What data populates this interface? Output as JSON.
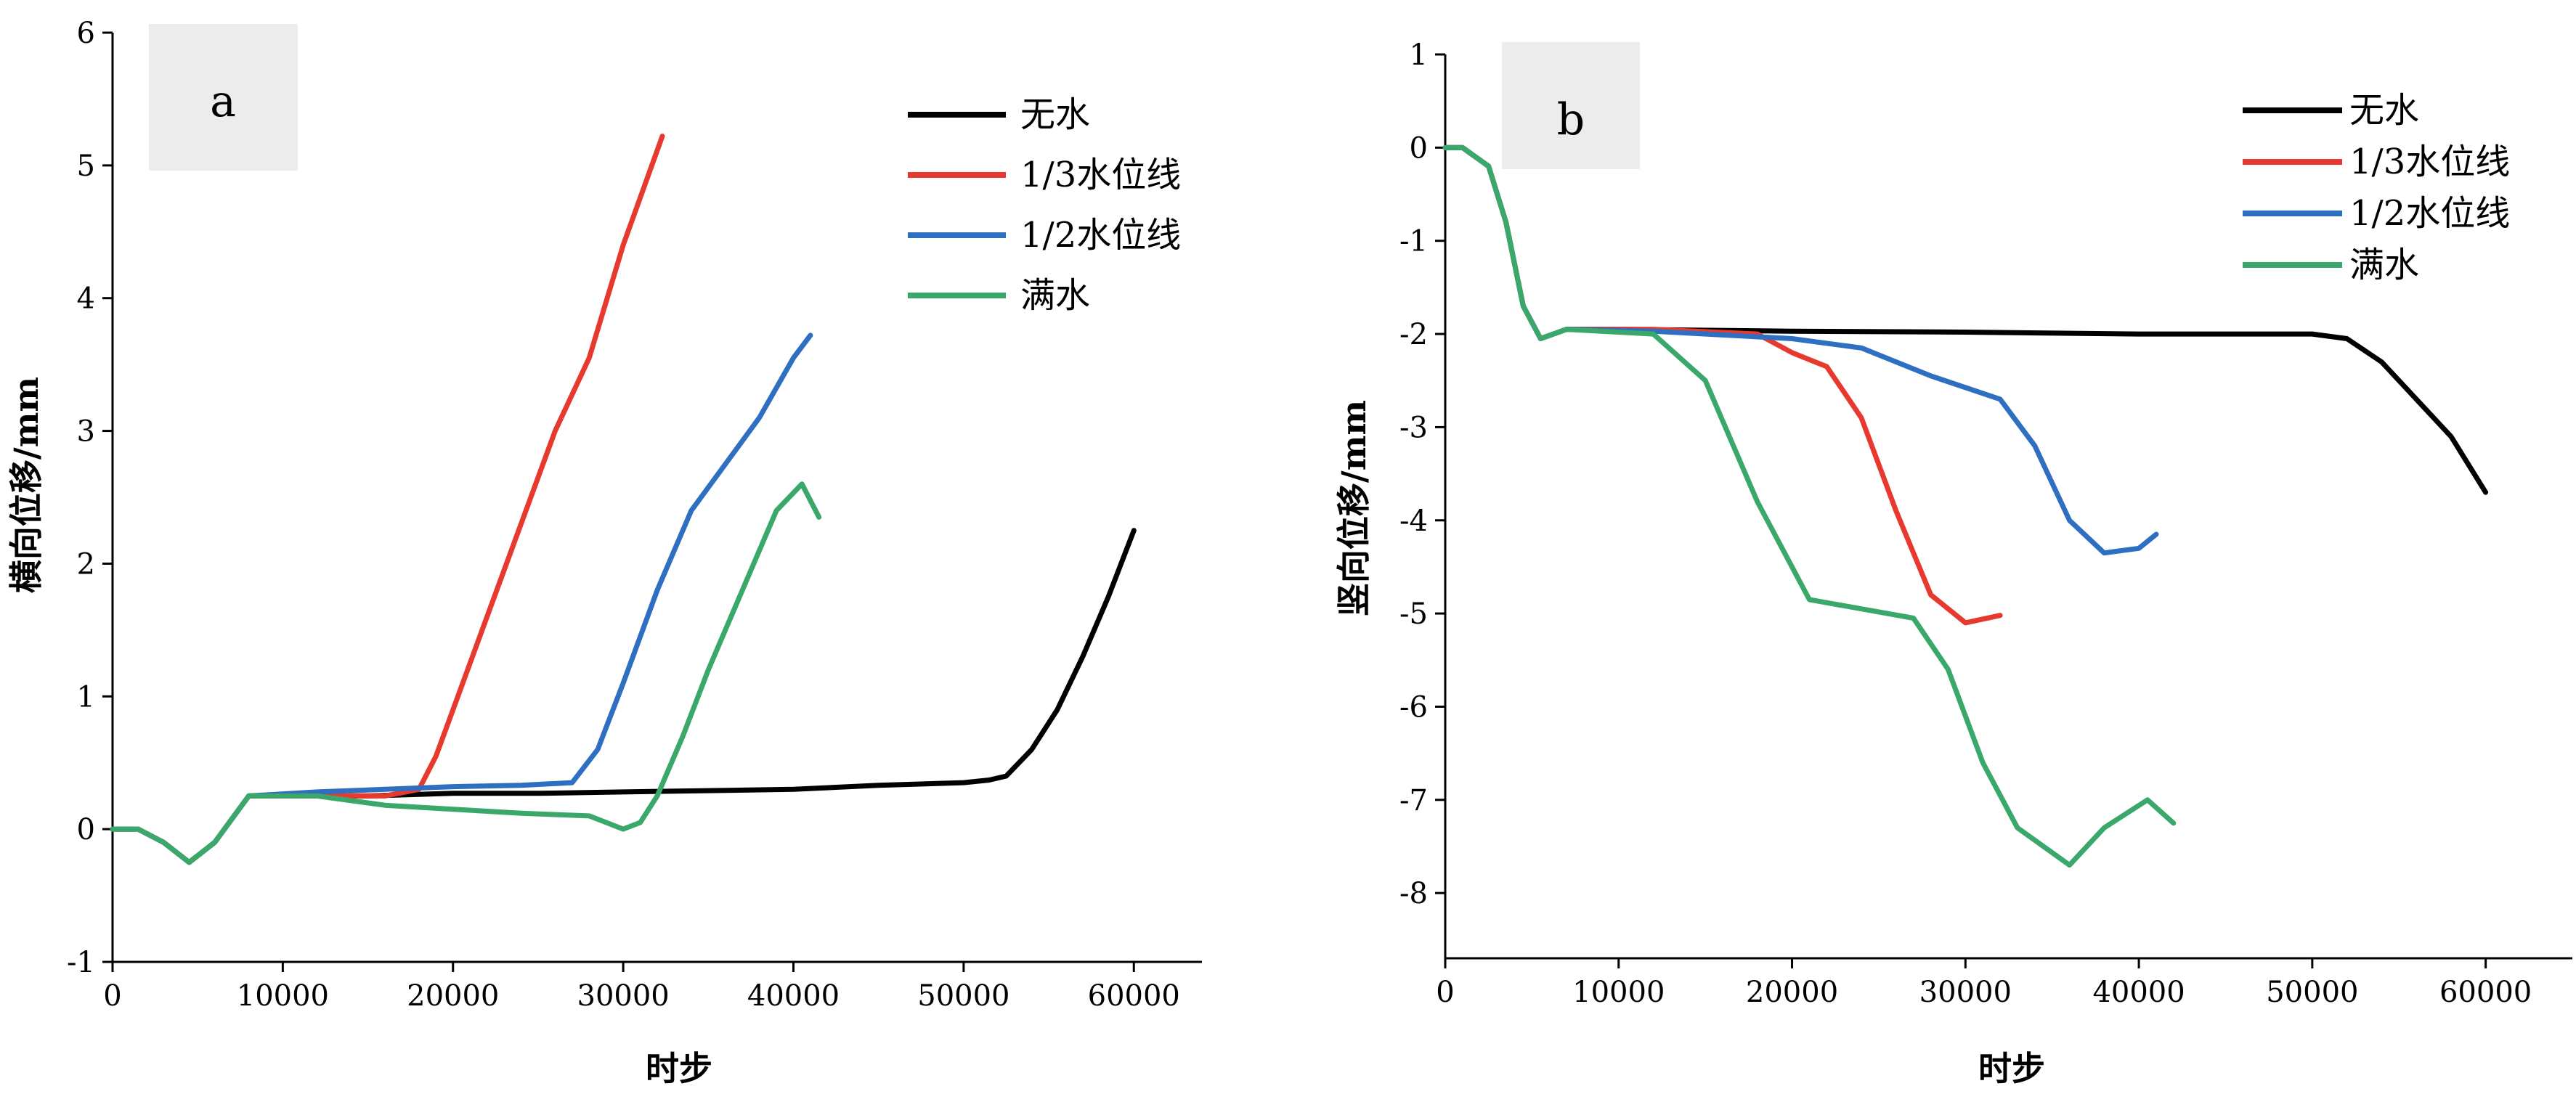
{
  "colors": {
    "series": [
      "#000000",
      "#e8392f",
      "#2e6fc2",
      "#3aa86a"
    ],
    "label_box": "#ececec"
  },
  "chart_data": [
    {
      "type": "line",
      "panel_label": "a",
      "xlabel": "时步",
      "ylabel": "横向位移/mm",
      "xlim": [
        0,
        64000
      ],
      "ylim": [
        -1,
        6
      ],
      "xticks": [
        0,
        10000,
        20000,
        30000,
        40000,
        50000,
        60000
      ],
      "yticks": [
        -1,
        0,
        1,
        2,
        3,
        4,
        5,
        6
      ],
      "legend_position": "top-right",
      "series": [
        {
          "name": "无水",
          "x": [
            0,
            1500,
            3000,
            4500,
            6000,
            8000,
            10000,
            15000,
            20000,
            25000,
            30000,
            35000,
            40000,
            45000,
            50000,
            51500,
            52500,
            54000,
            55500,
            57000,
            58500,
            60000
          ],
          "y": [
            0,
            0,
            -0.1,
            -0.25,
            -0.1,
            0.25,
            0.25,
            0.25,
            0.27,
            0.27,
            0.28,
            0.29,
            0.3,
            0.33,
            0.35,
            0.37,
            0.4,
            0.6,
            0.9,
            1.3,
            1.75,
            2.25
          ]
        },
        {
          "name": "1/3水位线",
          "x": [
            0,
            1500,
            3000,
            4500,
            6000,
            8000,
            12000,
            16000,
            18000,
            19000,
            20000,
            22000,
            24000,
            26000,
            28000,
            30000,
            32300
          ],
          "y": [
            0,
            0,
            -0.1,
            -0.25,
            -0.1,
            0.25,
            0.25,
            0.25,
            0.3,
            0.55,
            0.9,
            1.6,
            2.3,
            3.0,
            3.55,
            4.4,
            5.22
          ]
        },
        {
          "name": "1/2水位线",
          "x": [
            0,
            1500,
            3000,
            4500,
            6000,
            8000,
            12000,
            16000,
            20000,
            24000,
            27000,
            28500,
            30000,
            32000,
            34000,
            36000,
            38000,
            40000,
            41000
          ],
          "y": [
            0,
            0,
            -0.1,
            -0.25,
            -0.1,
            0.25,
            0.28,
            0.3,
            0.32,
            0.33,
            0.35,
            0.6,
            1.1,
            1.8,
            2.4,
            2.75,
            3.1,
            3.55,
            3.72
          ]
        },
        {
          "name": "满水",
          "x": [
            0,
            1500,
            3000,
            4500,
            6000,
            8000,
            12000,
            16000,
            20000,
            24000,
            28000,
            30000,
            31000,
            32000,
            33500,
            35000,
            37000,
            39000,
            40500,
            41500
          ],
          "y": [
            0,
            0,
            -0.1,
            -0.25,
            -0.1,
            0.25,
            0.25,
            0.18,
            0.15,
            0.12,
            0.1,
            0.0,
            0.05,
            0.25,
            0.7,
            1.2,
            1.8,
            2.4,
            2.6,
            2.35
          ]
        }
      ]
    },
    {
      "type": "line",
      "panel_label": "b",
      "xlabel": "时步",
      "ylabel": "竖向位移/mm",
      "xlim": [
        0,
        65000
      ],
      "ylim": [
        -8.7,
        1
      ],
      "xticks": [
        0,
        10000,
        20000,
        30000,
        40000,
        50000,
        60000
      ],
      "yticks": [
        1,
        0,
        -1,
        -2,
        -3,
        -4,
        -5,
        -6,
        -7,
        -8
      ],
      "legend_position": "top-right",
      "series": [
        {
          "name": "无水",
          "x": [
            0,
            1000,
            2500,
            3500,
            4500,
            5500,
            7000,
            10000,
            20000,
            30000,
            40000,
            45000,
            50000,
            52000,
            54000,
            56000,
            58000,
            60000
          ],
          "y": [
            0,
            0,
            -0.2,
            -0.8,
            -1.7,
            -2.05,
            -1.95,
            -1.95,
            -1.97,
            -1.98,
            -2.0,
            -2.0,
            -2.0,
            -2.05,
            -2.3,
            -2.7,
            -3.1,
            -3.7
          ]
        },
        {
          "name": "1/3水位线",
          "x": [
            0,
            1000,
            2500,
            3500,
            4500,
            5500,
            7000,
            12000,
            18000,
            20000,
            22000,
            24000,
            26000,
            28000,
            30000,
            32000
          ],
          "y": [
            0,
            0,
            -0.2,
            -0.8,
            -1.7,
            -2.05,
            -1.95,
            -1.95,
            -2.0,
            -2.2,
            -2.35,
            -2.9,
            -3.9,
            -4.8,
            -5.1,
            -5.02
          ]
        },
        {
          "name": "1/2水位线",
          "x": [
            0,
            1000,
            2500,
            3500,
            4500,
            5500,
            7000,
            12000,
            20000,
            24000,
            28000,
            32000,
            34000,
            36000,
            38000,
            40000,
            41000
          ],
          "y": [
            0,
            0,
            -0.2,
            -0.8,
            -1.7,
            -2.05,
            -1.95,
            -1.97,
            -2.05,
            -2.15,
            -2.45,
            -2.7,
            -3.2,
            -4.0,
            -4.35,
            -4.3,
            -4.15
          ]
        },
        {
          "name": "满水",
          "x": [
            0,
            1000,
            2500,
            3500,
            4500,
            5500,
            7000,
            12000,
            15000,
            18000,
            21000,
            24000,
            27000,
            29000,
            31000,
            33000,
            36000,
            38000,
            40500,
            42000
          ],
          "y": [
            0,
            0,
            -0.2,
            -0.8,
            -1.7,
            -2.05,
            -1.95,
            -2.0,
            -2.5,
            -3.8,
            -4.85,
            -4.95,
            -5.05,
            -5.6,
            -6.6,
            -7.3,
            -7.7,
            -7.3,
            -7.0,
            -7.25
          ]
        }
      ]
    }
  ]
}
